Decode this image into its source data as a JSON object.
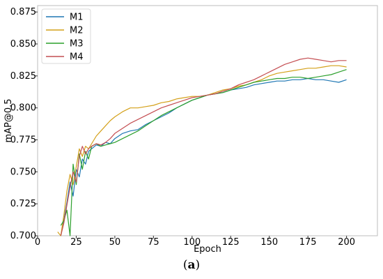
{
  "chart_data": {
    "type": "line",
    "xlabel": "Epoch",
    "ylabel": "mAP@0.5",
    "xlim": [
      0,
      220
    ],
    "ylim": [
      0.7,
      0.88
    ],
    "xticks": [
      0,
      25,
      50,
      75,
      100,
      125,
      150,
      175,
      200
    ],
    "yticks": [
      0.7,
      0.725,
      0.75,
      0.775,
      0.8,
      0.825,
      0.85,
      0.875
    ],
    "grid": false,
    "legend_position": "top-left",
    "series": [
      {
        "name": "M1",
        "color": "#1f77b4",
        "points": [
          [
            15,
            0.7
          ],
          [
            17,
            0.712
          ],
          [
            19,
            0.726
          ],
          [
            21,
            0.742
          ],
          [
            23,
            0.731
          ],
          [
            25,
            0.752
          ],
          [
            27,
            0.746
          ],
          [
            29,
            0.76
          ],
          [
            31,
            0.756
          ],
          [
            33,
            0.766
          ],
          [
            35,
            0.768
          ],
          [
            38,
            0.771
          ],
          [
            41,
            0.77
          ],
          [
            44,
            0.773
          ],
          [
            47,
            0.772
          ],
          [
            50,
            0.776
          ],
          [
            55,
            0.78
          ],
          [
            60,
            0.782
          ],
          [
            65,
            0.783
          ],
          [
            70,
            0.787
          ],
          [
            75,
            0.79
          ],
          [
            80,
            0.793
          ],
          [
            85,
            0.796
          ],
          [
            90,
            0.8
          ],
          [
            95,
            0.803
          ],
          [
            100,
            0.806
          ],
          [
            105,
            0.808
          ],
          [
            110,
            0.81
          ],
          [
            115,
            0.811
          ],
          [
            120,
            0.812
          ],
          [
            125,
            0.814
          ],
          [
            130,
            0.815
          ],
          [
            135,
            0.816
          ],
          [
            140,
            0.818
          ],
          [
            145,
            0.819
          ],
          [
            150,
            0.82
          ],
          [
            155,
            0.821
          ],
          [
            160,
            0.821
          ],
          [
            165,
            0.822
          ],
          [
            170,
            0.822
          ],
          [
            175,
            0.823
          ],
          [
            180,
            0.822
          ],
          [
            185,
            0.822
          ],
          [
            190,
            0.821
          ],
          [
            195,
            0.82
          ],
          [
            200,
            0.822
          ]
        ]
      },
      {
        "name": "M2",
        "color": "#d4a019",
        "points": [
          [
            13,
            0.703
          ],
          [
            15,
            0.7
          ],
          [
            17,
            0.716
          ],
          [
            19,
            0.735
          ],
          [
            21,
            0.748
          ],
          [
            23,
            0.74
          ],
          [
            25,
            0.754
          ],
          [
            27,
            0.768
          ],
          [
            29,
            0.762
          ],
          [
            31,
            0.77
          ],
          [
            33,
            0.768
          ],
          [
            35,
            0.772
          ],
          [
            38,
            0.778
          ],
          [
            41,
            0.782
          ],
          [
            44,
            0.786
          ],
          [
            47,
            0.79
          ],
          [
            50,
            0.793
          ],
          [
            55,
            0.797
          ],
          [
            60,
            0.8
          ],
          [
            65,
            0.8
          ],
          [
            70,
            0.801
          ],
          [
            75,
            0.802
          ],
          [
            80,
            0.804
          ],
          [
            85,
            0.805
          ],
          [
            90,
            0.807
          ],
          [
            95,
            0.808
          ],
          [
            100,
            0.809
          ],
          [
            105,
            0.809
          ],
          [
            110,
            0.81
          ],
          [
            115,
            0.812
          ],
          [
            120,
            0.814
          ],
          [
            125,
            0.815
          ],
          [
            130,
            0.817
          ],
          [
            135,
            0.818
          ],
          [
            140,
            0.82
          ],
          [
            145,
            0.822
          ],
          [
            150,
            0.825
          ],
          [
            155,
            0.827
          ],
          [
            160,
            0.828
          ],
          [
            165,
            0.829
          ],
          [
            170,
            0.83
          ],
          [
            175,
            0.831
          ],
          [
            180,
            0.831
          ],
          [
            185,
            0.832
          ],
          [
            190,
            0.833
          ],
          [
            195,
            0.833
          ],
          [
            200,
            0.832
          ]
        ]
      },
      {
        "name": "M3",
        "color": "#2ca02c",
        "points": [
          [
            15,
            0.708
          ],
          [
            17,
            0.712
          ],
          [
            19,
            0.72
          ],
          [
            21,
            0.7
          ],
          [
            23,
            0.756
          ],
          [
            25,
            0.74
          ],
          [
            27,
            0.764
          ],
          [
            29,
            0.752
          ],
          [
            31,
            0.766
          ],
          [
            33,
            0.76
          ],
          [
            35,
            0.77
          ],
          [
            38,
            0.772
          ],
          [
            41,
            0.77
          ],
          [
            44,
            0.771
          ],
          [
            47,
            0.772
          ],
          [
            50,
            0.773
          ],
          [
            55,
            0.776
          ],
          [
            60,
            0.779
          ],
          [
            65,
            0.782
          ],
          [
            70,
            0.786
          ],
          [
            75,
            0.79
          ],
          [
            80,
            0.794
          ],
          [
            85,
            0.797
          ],
          [
            90,
            0.8
          ],
          [
            95,
            0.803
          ],
          [
            100,
            0.806
          ],
          [
            105,
            0.808
          ],
          [
            110,
            0.81
          ],
          [
            115,
            0.811
          ],
          [
            120,
            0.812
          ],
          [
            125,
            0.814
          ],
          [
            130,
            0.816
          ],
          [
            135,
            0.818
          ],
          [
            140,
            0.82
          ],
          [
            145,
            0.821
          ],
          [
            150,
            0.822
          ],
          [
            155,
            0.823
          ],
          [
            160,
            0.823
          ],
          [
            165,
            0.824
          ],
          [
            170,
            0.824
          ],
          [
            175,
            0.823
          ],
          [
            180,
            0.824
          ],
          [
            185,
            0.825
          ],
          [
            190,
            0.826
          ],
          [
            195,
            0.828
          ],
          [
            200,
            0.83
          ]
        ]
      },
      {
        "name": "M4",
        "color": "#c44e52",
        "points": [
          [
            15,
            0.7
          ],
          [
            17,
            0.71
          ],
          [
            19,
            0.724
          ],
          [
            21,
            0.738
          ],
          [
            23,
            0.75
          ],
          [
            25,
            0.742
          ],
          [
            27,
            0.762
          ],
          [
            29,
            0.77
          ],
          [
            31,
            0.764
          ],
          [
            33,
            0.768
          ],
          [
            35,
            0.77
          ],
          [
            38,
            0.772
          ],
          [
            41,
            0.771
          ],
          [
            44,
            0.773
          ],
          [
            47,
            0.776
          ],
          [
            50,
            0.78
          ],
          [
            55,
            0.784
          ],
          [
            60,
            0.788
          ],
          [
            65,
            0.791
          ],
          [
            70,
            0.794
          ],
          [
            75,
            0.797
          ],
          [
            80,
            0.8
          ],
          [
            85,
            0.802
          ],
          [
            90,
            0.804
          ],
          [
            95,
            0.806
          ],
          [
            100,
            0.808
          ],
          [
            105,
            0.809
          ],
          [
            110,
            0.81
          ],
          [
            115,
            0.811
          ],
          [
            120,
            0.813
          ],
          [
            125,
            0.815
          ],
          [
            130,
            0.818
          ],
          [
            135,
            0.82
          ],
          [
            140,
            0.822
          ],
          [
            145,
            0.825
          ],
          [
            150,
            0.828
          ],
          [
            155,
            0.831
          ],
          [
            160,
            0.834
          ],
          [
            165,
            0.836
          ],
          [
            170,
            0.838
          ],
          [
            175,
            0.839
          ],
          [
            180,
            0.838
          ],
          [
            185,
            0.837
          ],
          [
            190,
            0.836
          ],
          [
            195,
            0.837
          ],
          [
            200,
            0.837
          ]
        ]
      }
    ]
  },
  "caption": {
    "open": "(",
    "letter": "a",
    "close": ")"
  }
}
